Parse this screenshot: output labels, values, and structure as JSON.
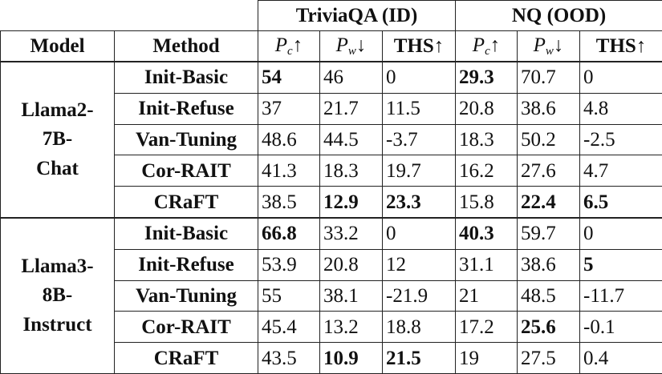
{
  "header": {
    "groups": [
      {
        "label": "TriviaQA (ID)"
      },
      {
        "label": "NQ (OOD)"
      }
    ],
    "model_label": "Model",
    "method_label": "Method",
    "metrics": [
      {
        "base": "P",
        "sub": "c",
        "arrow": "↑",
        "math": true
      },
      {
        "base": "P",
        "sub": "w",
        "arrow": "↓",
        "math": true
      },
      {
        "base": "THS",
        "sub": "",
        "arrow": "↑",
        "math": false
      }
    ]
  },
  "blocks": [
    {
      "model": "Llama2-7B-Chat",
      "model_lines": [
        "Llama2-",
        "7B-",
        "Chat"
      ],
      "rows": [
        {
          "method": "Init-Basic",
          "values": [
            "54",
            "46",
            "0",
            "29.3",
            "70.7",
            "0"
          ],
          "bold": [
            true,
            false,
            false,
            true,
            false,
            false
          ]
        },
        {
          "method": "Init-Refuse",
          "values": [
            "37",
            "21.7",
            "11.5",
            "20.8",
            "38.6",
            "4.8"
          ],
          "bold": [
            false,
            false,
            false,
            false,
            false,
            false
          ]
        },
        {
          "method": "Van-Tuning",
          "values": [
            "48.6",
            "44.5",
            "-3.7",
            "18.3",
            "50.2",
            "-2.5"
          ],
          "bold": [
            false,
            false,
            false,
            false,
            false,
            false
          ]
        },
        {
          "method": "Cor-RAIT",
          "values": [
            "41.3",
            "18.3",
            "19.7",
            "16.2",
            "27.6",
            "4.7"
          ],
          "bold": [
            false,
            false,
            false,
            false,
            false,
            false
          ]
        },
        {
          "method": "CRaFT",
          "values": [
            "38.5",
            "12.9",
            "23.3",
            "15.8",
            "22.4",
            "6.5"
          ],
          "bold": [
            false,
            true,
            true,
            false,
            true,
            true
          ]
        }
      ]
    },
    {
      "model": "Llama3-8B-Instruct",
      "model_lines": [
        "Llama3-",
        "8B-",
        "Instruct"
      ],
      "rows": [
        {
          "method": "Init-Basic",
          "values": [
            "66.8",
            "33.2",
            "0",
            "40.3",
            "59.7",
            "0"
          ],
          "bold": [
            true,
            false,
            false,
            true,
            false,
            false
          ]
        },
        {
          "method": "Init-Refuse",
          "values": [
            "53.9",
            "20.8",
            "12",
            "31.1",
            "38.6",
            "5"
          ],
          "bold": [
            false,
            false,
            false,
            false,
            false,
            true
          ]
        },
        {
          "method": "Van-Tuning",
          "values": [
            "55",
            "38.1",
            "-21.9",
            "21",
            "48.5",
            "-11.7"
          ],
          "bold": [
            false,
            false,
            false,
            false,
            false,
            false
          ]
        },
        {
          "method": "Cor-RAIT",
          "values": [
            "45.4",
            "13.2",
            "18.8",
            "17.2",
            "25.6",
            "-0.1"
          ],
          "bold": [
            false,
            false,
            false,
            false,
            true,
            false
          ]
        },
        {
          "method": "CRaFT",
          "values": [
            "43.5",
            "10.9",
            "21.5",
            "19",
            "27.5",
            "0.4"
          ],
          "bold": [
            false,
            true,
            true,
            false,
            false,
            false
          ]
        }
      ]
    }
  ]
}
